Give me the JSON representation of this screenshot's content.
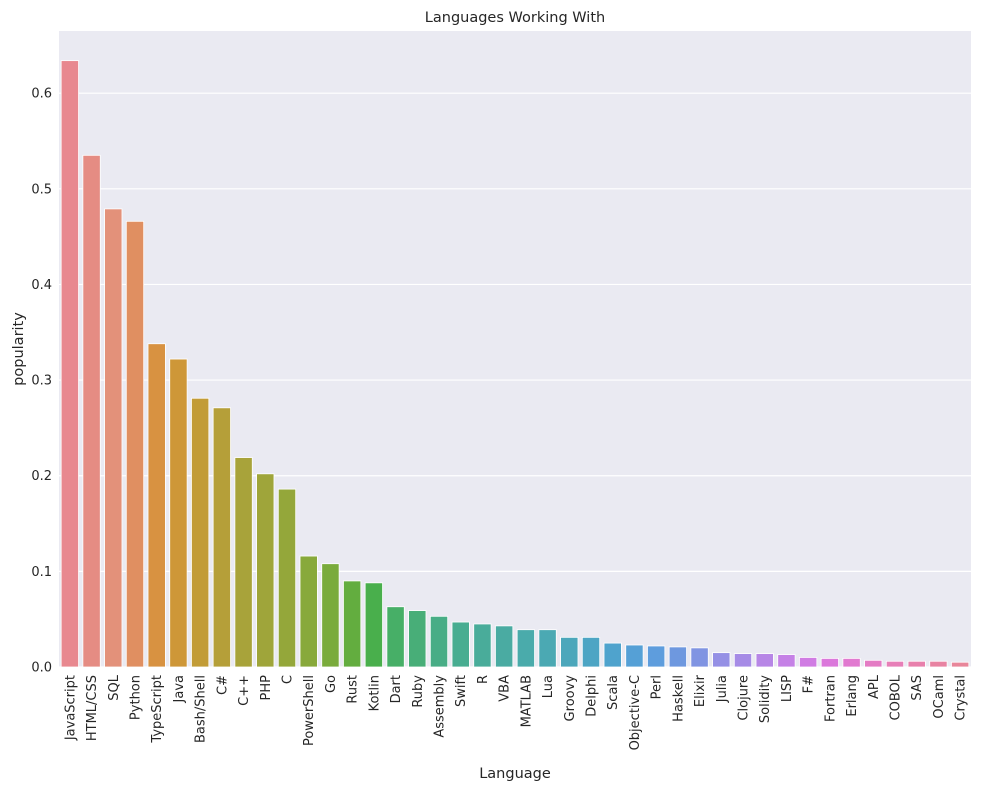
{
  "chart_data": {
    "type": "bar",
    "title": "Languages Working With",
    "xlabel": "Language",
    "ylabel": "popularity",
    "ylim": [
      0,
      0.665
    ],
    "yticks": [
      "0.0",
      "0.1",
      "0.2",
      "0.3",
      "0.4",
      "0.5",
      "0.6"
    ],
    "grid": true,
    "legend": "none",
    "categories": [
      "JavaScript",
      "HTML/CSS",
      "SQL",
      "Python",
      "TypeScript",
      "Java",
      "Bash/Shell",
      "C#",
      "C++",
      "PHP",
      "C",
      "PowerShell",
      "Go",
      "Rust",
      "Kotlin",
      "Dart",
      "Ruby",
      "Assembly",
      "Swift",
      "R",
      "VBA",
      "MATLAB",
      "Lua",
      "Groovy",
      "Delphi",
      "Scala",
      "Objective-C",
      "Perl",
      "Haskell",
      "Elixir",
      "Julia",
      "Clojure",
      "Solidity",
      "LISP",
      "F#",
      "Fortran",
      "Erlang",
      "APL",
      "COBOL",
      "SAS",
      "OCaml",
      "Crystal"
    ],
    "values": [
      0.634,
      0.535,
      0.479,
      0.466,
      0.338,
      0.322,
      0.281,
      0.271,
      0.219,
      0.202,
      0.186,
      0.116,
      0.108,
      0.09,
      0.088,
      0.063,
      0.059,
      0.053,
      0.047,
      0.045,
      0.043,
      0.039,
      0.039,
      0.031,
      0.031,
      0.025,
      0.023,
      0.022,
      0.021,
      0.02,
      0.015,
      0.014,
      0.014,
      0.013,
      0.01,
      0.009,
      0.009,
      0.007,
      0.006,
      0.006,
      0.006,
      0.005
    ],
    "colors": {
      "background": "#eaeaf2",
      "grid": "#ffffff",
      "palette": [
        "#e8888f",
        "#e58c83",
        "#e3917a",
        "#e08f61",
        "#d89241",
        "#ce9738",
        "#c29c37",
        "#b59f39",
        "#a8a33a",
        "#9fa53a",
        "#94a73a",
        "#88a93b",
        "#7aab3c",
        "#63ad3f",
        "#49af4c",
        "#47af67",
        "#48ae78",
        "#48ad86",
        "#48ad91",
        "#49ac9a",
        "#4aaba2",
        "#4aabab",
        "#4ba9b3",
        "#4ca7bb",
        "#4da5c4",
        "#4fa3cd",
        "#55a0d6",
        "#5e9ddd",
        "#6e98df",
        "#8094e2",
        "#9590e5",
        "#a68be6",
        "#b786e6",
        "#c581e6",
        "#d07ce3",
        "#db78db",
        "#e17ad0",
        "#e47bc4",
        "#e77fb8",
        "#e880ac",
        "#e883a2",
        "#e8869a"
      ]
    }
  }
}
